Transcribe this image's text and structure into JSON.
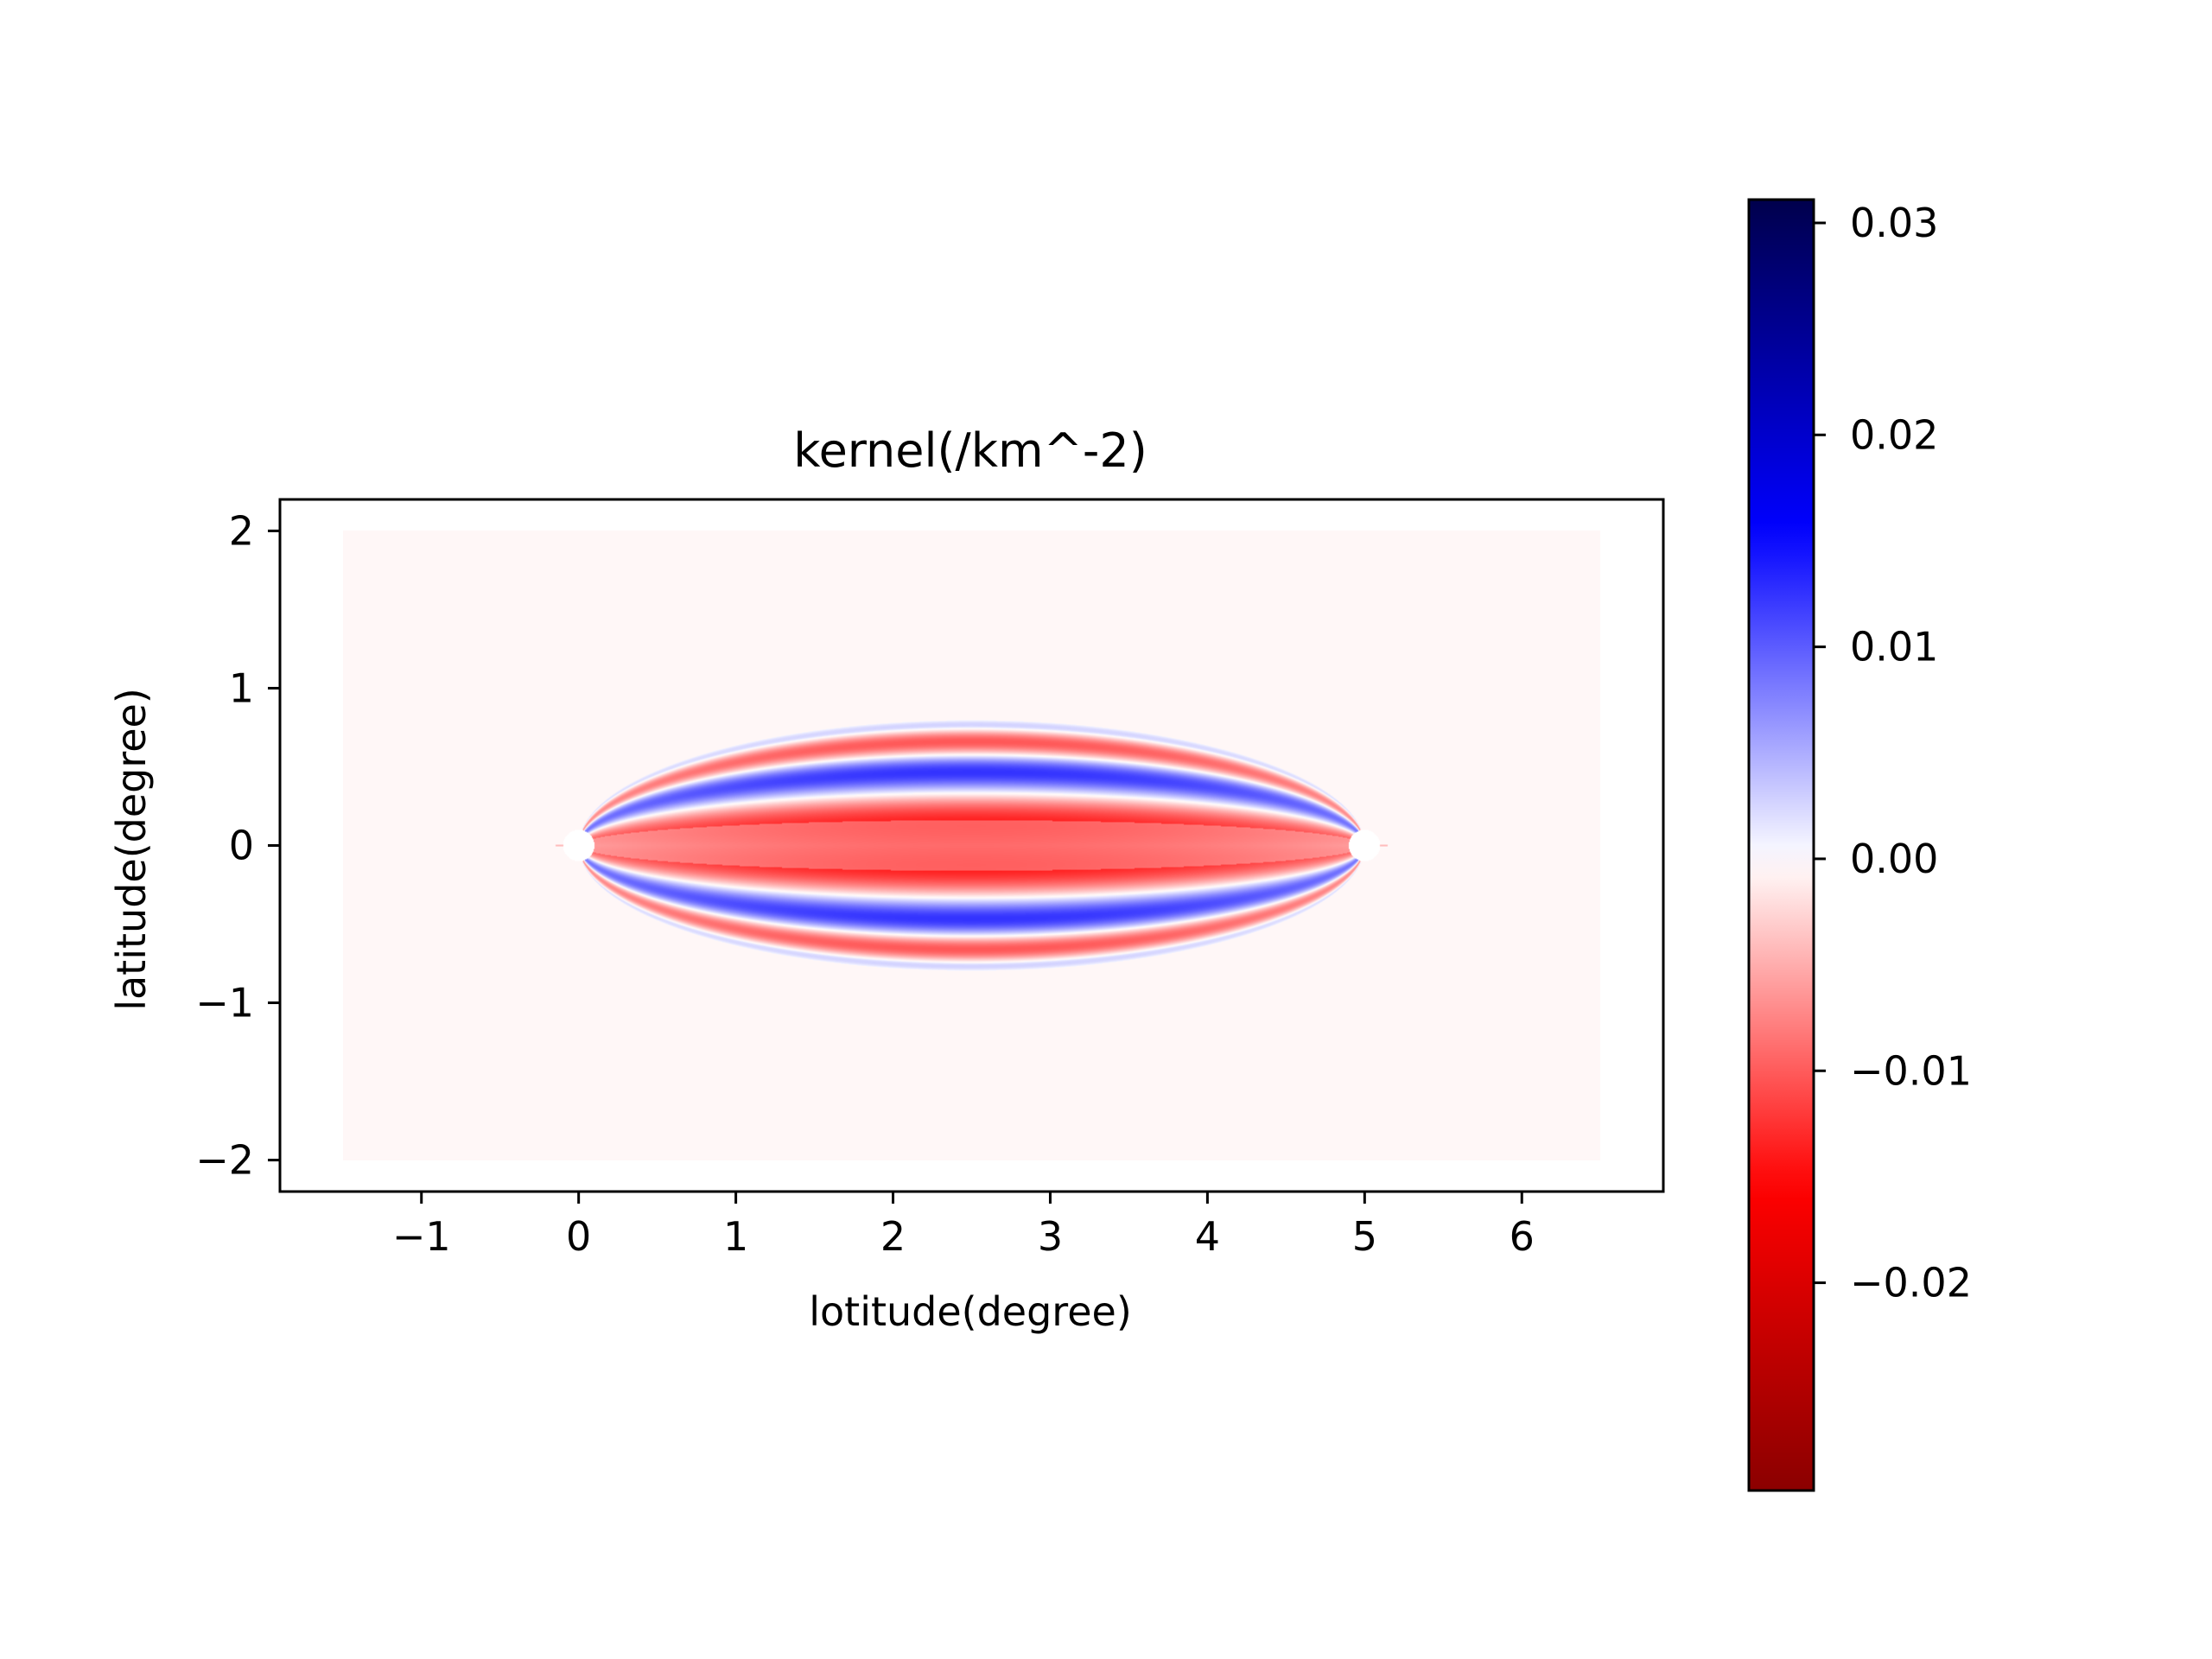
{
  "chart_data": {
    "type": "heatmap",
    "title": "kernel(/km^-2)",
    "xlabel": "lotitude(degree)",
    "ylabel": "latitude(degree)",
    "xlim": [
      -1.9,
      6.9
    ],
    "ylim": [
      -2.2,
      2.2
    ],
    "data_extent": {
      "x": [
        -1.5,
        6.5
      ],
      "y": [
        -2.0,
        2.0
      ]
    },
    "x_ticks": [
      -1,
      0,
      1,
      2,
      3,
      4,
      5,
      6
    ],
    "x_tick_labels": [
      "−1",
      "0",
      "1",
      "2",
      "3",
      "4",
      "5",
      "6"
    ],
    "y_ticks": [
      -2,
      -1,
      0,
      1,
      2
    ],
    "y_tick_labels": [
      "−2",
      "−1",
      "0",
      "1",
      "2"
    ],
    "grid": false,
    "colormap": "seismic",
    "background_value": -0.0005,
    "source": {
      "x": 0,
      "y": 0
    },
    "receiver": {
      "x": 5,
      "y": 0
    },
    "kernel_half_width_max": 0.8,
    "center_band_value": -0.009,
    "colorbar": {
      "vmin": -0.0298,
      "vmax": 0.0311,
      "ticks": [
        0.03,
        0.02,
        0.01,
        0.0,
        -0.01,
        -0.02
      ],
      "tick_labels": [
        "0.03",
        "0.02",
        "0.01",
        "0.00",
        "−0.01",
        "−0.02"
      ],
      "colors": {
        "low": "#800000",
        "red": "#ff0000",
        "mid": "#ffffff",
        "blue": "#0000ff",
        "high": "#00004c"
      }
    }
  }
}
